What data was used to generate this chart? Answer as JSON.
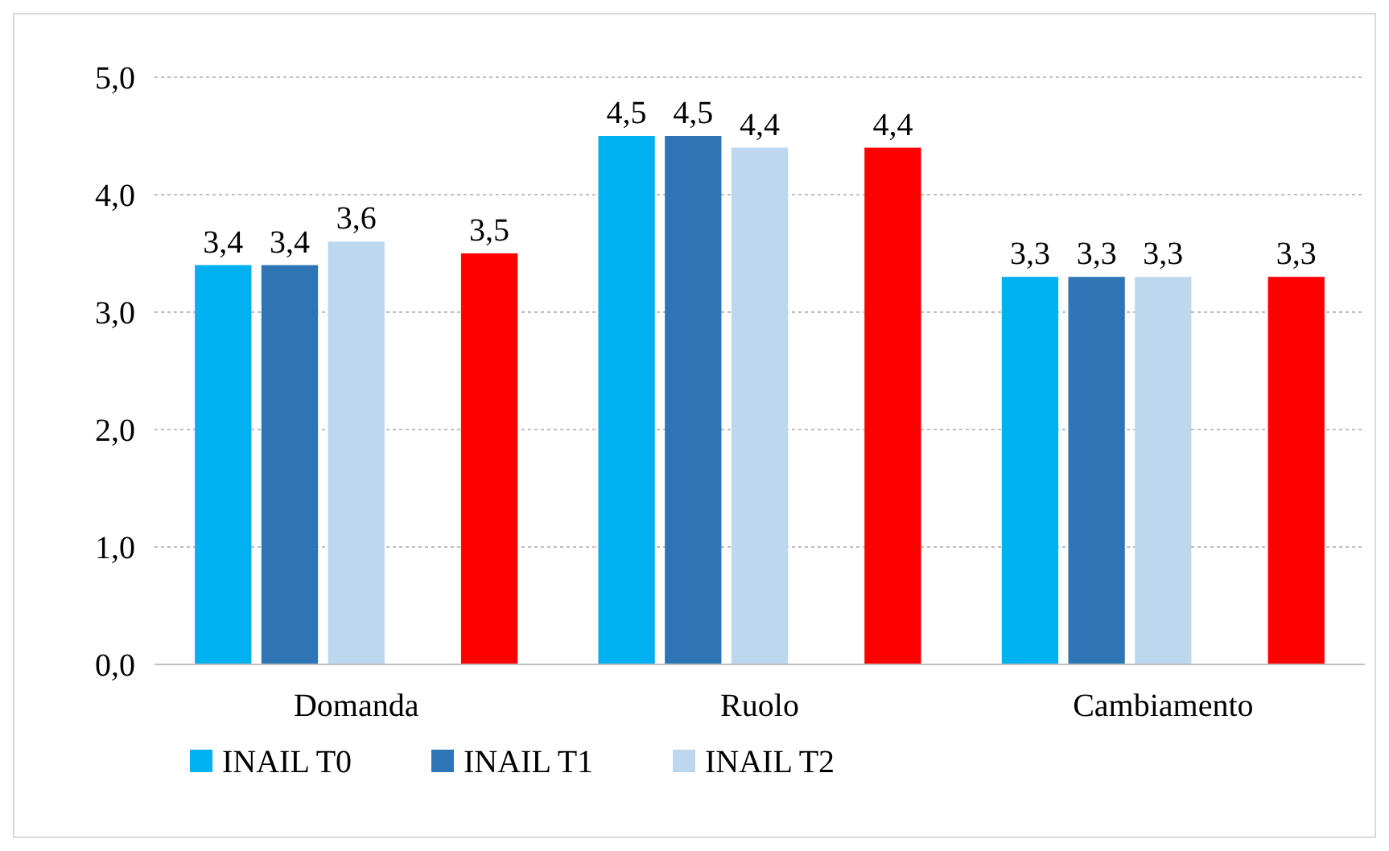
{
  "chart_data": {
    "type": "bar",
    "categories": [
      "Domanda",
      "Ruolo",
      "Cambiamento"
    ],
    "series": [
      {
        "name": "INAIL T0",
        "color": "#00b0f0",
        "values": [
          3.4,
          4.5,
          3.3
        ],
        "value_labels": [
          "3,4",
          "4,5",
          "3,3"
        ]
      },
      {
        "name": "INAIL T1",
        "color": "#2e75b6",
        "values": [
          3.4,
          4.5,
          3.3
        ],
        "value_labels": [
          "3,4",
          "4,5",
          "3,3"
        ]
      },
      {
        "name": "INAIL T2",
        "color": "#bdd7ee",
        "values": [
          3.6,
          4.4,
          3.3
        ],
        "value_labels": [
          "3,6",
          "4,4",
          "3,3"
        ]
      },
      {
        "values": [
          null,
          null,
          null
        ]
      },
      {
        "color": "#ff0000",
        "values": [
          3.5,
          4.4,
          3.3
        ],
        "value_labels": [
          "3,5",
          "4,4",
          "3,3"
        ]
      }
    ],
    "ylim": [
      0,
      5
    ],
    "yticks": [
      {
        "value": 0,
        "label": "0,0"
      },
      {
        "value": 1,
        "label": "1,0"
      },
      {
        "value": 2,
        "label": "2,0"
      },
      {
        "value": 3,
        "label": "3,0"
      },
      {
        "value": 4,
        "label": "4,0"
      },
      {
        "value": 5,
        "label": "5,0"
      }
    ],
    "grid": "y",
    "legend": "bottom"
  }
}
